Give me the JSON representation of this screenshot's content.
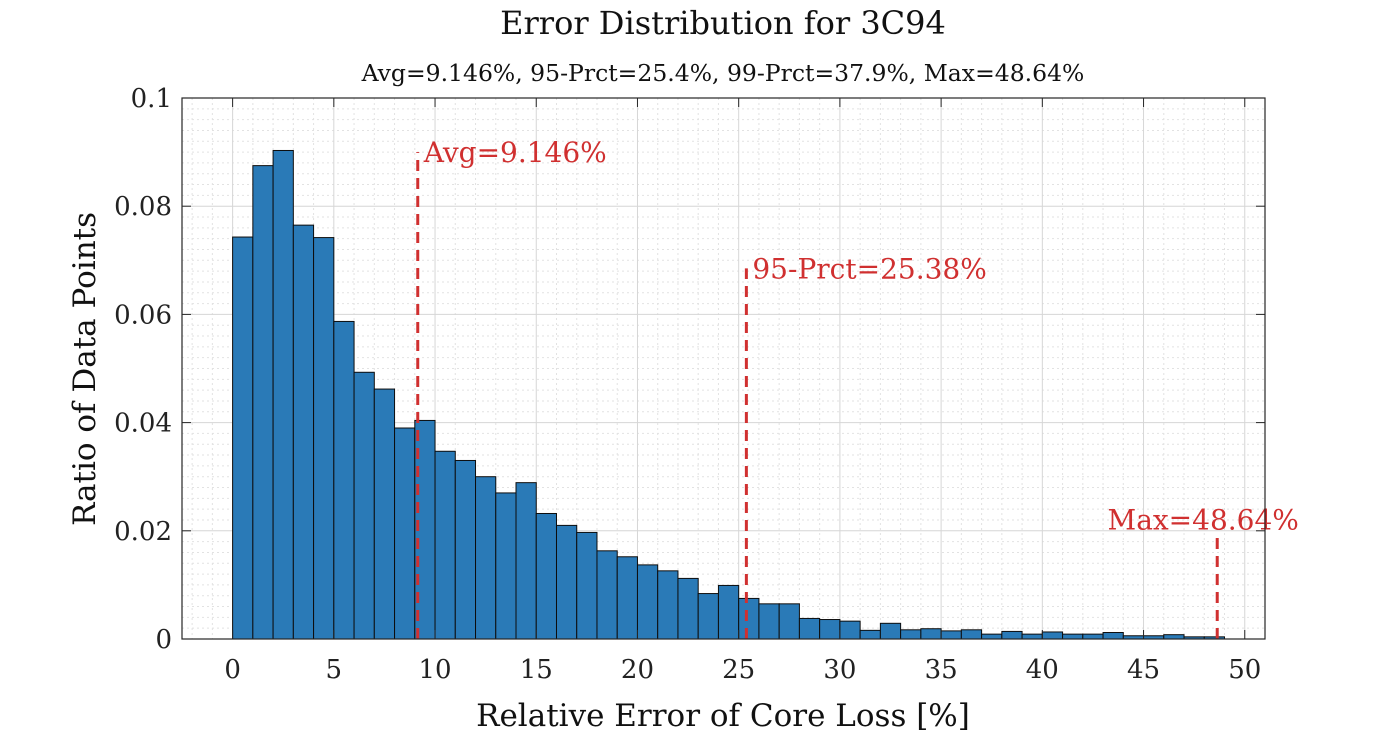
{
  "chart_data": {
    "type": "bar",
    "title": "Error Distribution for 3C94",
    "subtitle": "Avg=9.146%, 95-Prct=25.4%, 99-Prct=37.9%, Max=48.64%",
    "xlabel": "Relative Error of Core Loss [%]",
    "ylabel": "Ratio of Data Points",
    "xlim": [
      -2.5,
      51
    ],
    "ylim": [
      0,
      0.1
    ],
    "grid": true,
    "minor_grid": true,
    "bin_width": 1,
    "bin_start": 0,
    "x_ticks": [
      0,
      5,
      10,
      15,
      20,
      25,
      30,
      35,
      40,
      45,
      50
    ],
    "x_tick_labels": [
      "0",
      "5",
      "10",
      "15",
      "20",
      "25",
      "30",
      "35",
      "40",
      "45",
      "50"
    ],
    "y_ticks": [
      0,
      0.02,
      0.04,
      0.06,
      0.08,
      0.1
    ],
    "y_tick_labels": [
      "0",
      "0.02",
      "0.04",
      "0.06",
      "0.08",
      "0.1"
    ],
    "values": [
      0.0743,
      0.0875,
      0.0903,
      0.0765,
      0.0742,
      0.0587,
      0.0493,
      0.0462,
      0.039,
      0.0404,
      0.0347,
      0.033,
      0.03,
      0.027,
      0.0289,
      0.0232,
      0.021,
      0.0197,
      0.0163,
      0.0152,
      0.0137,
      0.0126,
      0.0112,
      0.0084,
      0.0099,
      0.0075,
      0.0065,
      0.0065,
      0.0038,
      0.0036,
      0.0033,
      0.0016,
      0.0029,
      0.0017,
      0.0019,
      0.0015,
      0.0017,
      0.0009,
      0.0014,
      0.0009,
      0.0013,
      0.0009,
      0.0009,
      0.0012,
      0.0006,
      0.0006,
      0.0008,
      0.0004,
      0.0004
    ],
    "bar_color": "#2a7ab7",
    "bar_edge_color": "#0d0d0d",
    "markers": [
      {
        "name": "avg",
        "label": "Avg=9.146%",
        "x": 9.146,
        "y_top": 0.09,
        "color": "#d03030"
      },
      {
        "name": "95-prct",
        "label": "95-Prct=25.38%",
        "x": 25.38,
        "y_top": 0.0685,
        "color": "#d03030"
      },
      {
        "name": "max",
        "label": "Max=48.64%",
        "x": 48.64,
        "y_top": 0.0195,
        "color": "#d03030"
      }
    ]
  }
}
